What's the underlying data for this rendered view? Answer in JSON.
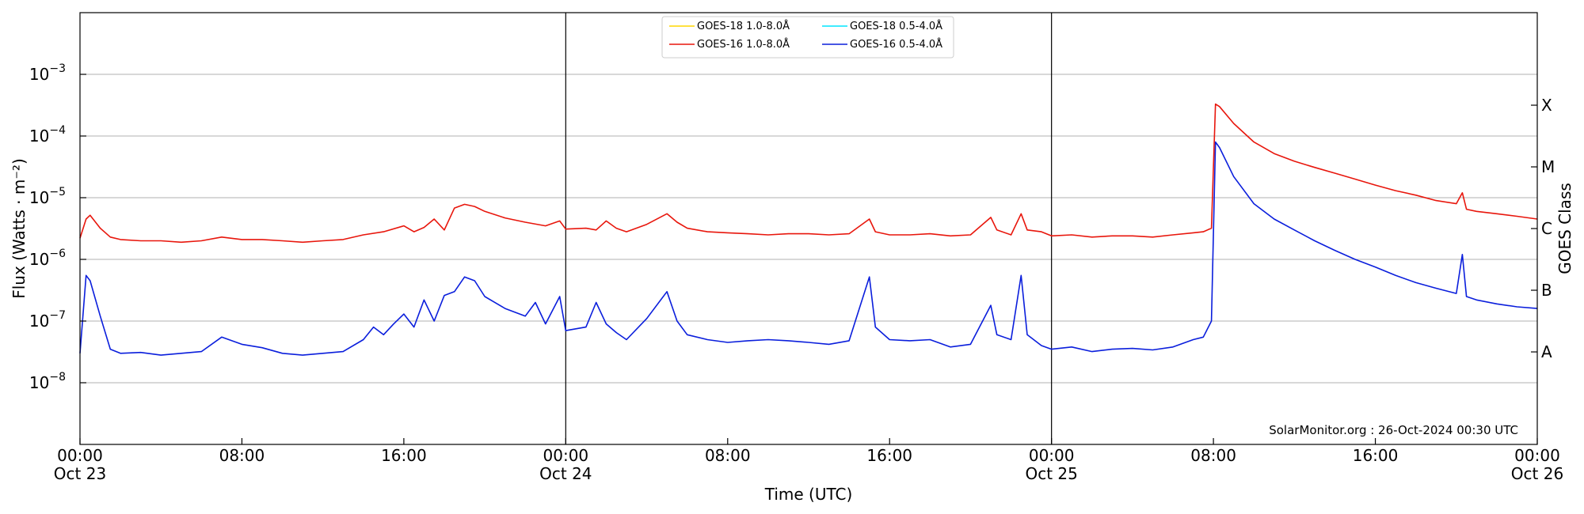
{
  "chart_data": {
    "type": "line",
    "title": "",
    "xlabel": "Time (UTC)",
    "ylabel": "Flux (Watts · m⁻²)",
    "right_ylabel": "GOES Class",
    "yscale": "log",
    "xlim_hours": [
      0,
      72
    ],
    "ylim": [
      1e-09,
      0.01
    ],
    "grid": "horizontal at y ticks",
    "legend_position": "top-center",
    "annotation": "SolarMonitor.org : 26-Oct-2024 00:30 UTC",
    "x_ticks": [
      {
        "hour": 0,
        "line1": "00:00",
        "line2": "Oct 23"
      },
      {
        "hour": 8,
        "line1": "08:00",
        "line2": ""
      },
      {
        "hour": 16,
        "line1": "16:00",
        "line2": ""
      },
      {
        "hour": 24,
        "line1": "00:00",
        "line2": "Oct 24"
      },
      {
        "hour": 32,
        "line1": "08:00",
        "line2": ""
      },
      {
        "hour": 40,
        "line1": "16:00",
        "line2": ""
      },
      {
        "hour": 48,
        "line1": "00:00",
        "line2": "Oct 25"
      },
      {
        "hour": 56,
        "line1": "08:00",
        "line2": ""
      },
      {
        "hour": 64,
        "line1": "16:00",
        "line2": ""
      },
      {
        "hour": 72,
        "line1": "00:00",
        "line2": "Oct 26"
      }
    ],
    "day_separators_hours": [
      24,
      48
    ],
    "y_ticks": [
      {
        "value": 1e-08,
        "mantissa": "10",
        "exp": "−8"
      },
      {
        "value": 1e-07,
        "mantissa": "10",
        "exp": "−7"
      },
      {
        "value": 1e-06,
        "mantissa": "10",
        "exp": "−6"
      },
      {
        "value": 1e-05,
        "mantissa": "10",
        "exp": "−5"
      },
      {
        "value": 0.0001,
        "mantissa": "10",
        "exp": "−4"
      },
      {
        "value": 0.001,
        "mantissa": "10",
        "exp": "−3"
      }
    ],
    "goes_classes": [
      {
        "label": "A",
        "value": 3.16e-08
      },
      {
        "label": "B",
        "value": 3.16e-07
      },
      {
        "label": "C",
        "value": 3.16e-06
      },
      {
        "label": "M",
        "value": 3.16e-05
      },
      {
        "label": "X",
        "value": 0.000316
      }
    ],
    "series": [
      {
        "name": "GOES-18 1.0-8.0Å",
        "color": "#ffd700",
        "points": []
      },
      {
        "name": "GOES-16 1.0-8.0Å",
        "color": "#e8160c",
        "points": [
          [
            0,
            2.2e-06
          ],
          [
            0.3,
            4.5e-06
          ],
          [
            0.5,
            5.2e-06
          ],
          [
            1,
            3.2e-06
          ],
          [
            1.5,
            2.3e-06
          ],
          [
            2,
            2.1e-06
          ],
          [
            3,
            2e-06
          ],
          [
            4,
            2e-06
          ],
          [
            5,
            1.9e-06
          ],
          [
            6,
            2e-06
          ],
          [
            7,
            2.3e-06
          ],
          [
            8,
            2.1e-06
          ],
          [
            9,
            2.1e-06
          ],
          [
            10,
            2e-06
          ],
          [
            11,
            1.9e-06
          ],
          [
            12,
            2e-06
          ],
          [
            13,
            2.1e-06
          ],
          [
            14,
            2.5e-06
          ],
          [
            15,
            2.8e-06
          ],
          [
            16,
            3.5e-06
          ],
          [
            16.5,
            2.8e-06
          ],
          [
            17,
            3.3e-06
          ],
          [
            17.5,
            4.5e-06
          ],
          [
            18,
            3e-06
          ],
          [
            18.5,
            6.8e-06
          ],
          [
            19,
            7.8e-06
          ],
          [
            19.5,
            7.2e-06
          ],
          [
            20,
            6e-06
          ],
          [
            21,
            4.7e-06
          ],
          [
            22,
            4e-06
          ],
          [
            23,
            3.5e-06
          ],
          [
            23.7,
            4.2e-06
          ],
          [
            24,
            3.1e-06
          ],
          [
            25,
            3.2e-06
          ],
          [
            25.5,
            3e-06
          ],
          [
            26,
            4.2e-06
          ],
          [
            26.5,
            3.2e-06
          ],
          [
            27,
            2.8e-06
          ],
          [
            28,
            3.7e-06
          ],
          [
            29,
            5.5e-06
          ],
          [
            29.5,
            4e-06
          ],
          [
            30,
            3.2e-06
          ],
          [
            31,
            2.8e-06
          ],
          [
            32,
            2.7e-06
          ],
          [
            33,
            2.6e-06
          ],
          [
            34,
            2.5e-06
          ],
          [
            35,
            2.6e-06
          ],
          [
            36,
            2.6e-06
          ],
          [
            37,
            2.5e-06
          ],
          [
            38,
            2.6e-06
          ],
          [
            39,
            4.5e-06
          ],
          [
            39.3,
            2.8e-06
          ],
          [
            40,
            2.5e-06
          ],
          [
            41,
            2.5e-06
          ],
          [
            42,
            2.6e-06
          ],
          [
            43,
            2.4e-06
          ],
          [
            44,
            2.5e-06
          ],
          [
            45,
            4.8e-06
          ],
          [
            45.3,
            3e-06
          ],
          [
            46,
            2.5e-06
          ],
          [
            46.5,
            5.5e-06
          ],
          [
            46.8,
            3e-06
          ],
          [
            47.5,
            2.8e-06
          ],
          [
            48,
            2.4e-06
          ],
          [
            49,
            2.5e-06
          ],
          [
            50,
            2.3e-06
          ],
          [
            51,
            2.4e-06
          ],
          [
            52,
            2.4e-06
          ],
          [
            53,
            2.3e-06
          ],
          [
            54,
            2.5e-06
          ],
          [
            55,
            2.7e-06
          ],
          [
            55.5,
            2.8e-06
          ],
          [
            55.9,
            3.2e-06
          ],
          [
            56.1,
            0.00033
          ],
          [
            56.3,
            0.0003
          ],
          [
            57,
            0.00016
          ],
          [
            58,
            8e-05
          ],
          [
            59,
            5.2e-05
          ],
          [
            60,
            3.9e-05
          ],
          [
            61,
            3.1e-05
          ],
          [
            62,
            2.5e-05
          ],
          [
            63,
            2e-05
          ],
          [
            64,
            1.6e-05
          ],
          [
            65,
            1.3e-05
          ],
          [
            66,
            1.1e-05
          ],
          [
            67,
            9e-06
          ],
          [
            68,
            8e-06
          ],
          [
            68.3,
            1.2e-05
          ],
          [
            68.5,
            6.5e-06
          ],
          [
            69,
            6e-06
          ],
          [
            70,
            5.5e-06
          ],
          [
            71,
            5e-06
          ],
          [
            72,
            4.5e-06
          ]
        ]
      },
      {
        "name": "GOES-18 0.5-4.0Å",
        "color": "#00e5ff",
        "points": []
      },
      {
        "name": "GOES-16 0.5-4.0Å",
        "color": "#0a1edc",
        "points": [
          [
            0,
            3e-08
          ],
          [
            0.3,
            5.5e-07
          ],
          [
            0.5,
            4.5e-07
          ],
          [
            1,
            1.2e-07
          ],
          [
            1.5,
            3.5e-08
          ],
          [
            2,
            3e-08
          ],
          [
            3,
            3.1e-08
          ],
          [
            4,
            2.8e-08
          ],
          [
            5,
            3e-08
          ],
          [
            6,
            3.2e-08
          ],
          [
            7,
            5.5e-08
          ],
          [
            8,
            4.2e-08
          ],
          [
            9,
            3.7e-08
          ],
          [
            10,
            3e-08
          ],
          [
            11,
            2.8e-08
          ],
          [
            12,
            3e-08
          ],
          [
            13,
            3.2e-08
          ],
          [
            14,
            5e-08
          ],
          [
            14.5,
            8e-08
          ],
          [
            15,
            6e-08
          ],
          [
            15.5,
            9e-08
          ],
          [
            16,
            1.3e-07
          ],
          [
            16.5,
            8e-08
          ],
          [
            17,
            2.2e-07
          ],
          [
            17.5,
            1e-07
          ],
          [
            18,
            2.6e-07
          ],
          [
            18.5,
            3e-07
          ],
          [
            19,
            5.2e-07
          ],
          [
            19.5,
            4.5e-07
          ],
          [
            20,
            2.5e-07
          ],
          [
            21,
            1.6e-07
          ],
          [
            22,
            1.2e-07
          ],
          [
            22.5,
            2e-07
          ],
          [
            23,
            9e-08
          ],
          [
            23.7,
            2.5e-07
          ],
          [
            24,
            7e-08
          ],
          [
            25,
            8e-08
          ],
          [
            25.5,
            2e-07
          ],
          [
            26,
            9e-08
          ],
          [
            26.5,
            6.5e-08
          ],
          [
            27,
            5e-08
          ],
          [
            28,
            1.1e-07
          ],
          [
            29,
            3e-07
          ],
          [
            29.5,
            1e-07
          ],
          [
            30,
            6e-08
          ],
          [
            31,
            5e-08
          ],
          [
            32,
            4.5e-08
          ],
          [
            33,
            4.8e-08
          ],
          [
            34,
            5e-08
          ],
          [
            35,
            4.8e-08
          ],
          [
            36,
            4.5e-08
          ],
          [
            37,
            4.2e-08
          ],
          [
            38,
            4.8e-08
          ],
          [
            39,
            5.2e-07
          ],
          [
            39.3,
            8e-08
          ],
          [
            40,
            5e-08
          ],
          [
            41,
            4.8e-08
          ],
          [
            42,
            5e-08
          ],
          [
            43,
            3.8e-08
          ],
          [
            44,
            4.2e-08
          ],
          [
            45,
            1.8e-07
          ],
          [
            45.3,
            6e-08
          ],
          [
            46,
            5e-08
          ],
          [
            46.5,
            5.5e-07
          ],
          [
            46.8,
            6e-08
          ],
          [
            47.5,
            4e-08
          ],
          [
            48,
            3.5e-08
          ],
          [
            49,
            3.8e-08
          ],
          [
            50,
            3.2e-08
          ],
          [
            51,
            3.5e-08
          ],
          [
            52,
            3.6e-08
          ],
          [
            53,
            3.4e-08
          ],
          [
            54,
            3.8e-08
          ],
          [
            55,
            5e-08
          ],
          [
            55.5,
            5.5e-08
          ],
          [
            55.9,
            1e-07
          ],
          [
            56.1,
            8e-05
          ],
          [
            56.3,
            6.5e-05
          ],
          [
            57,
            2.2e-05
          ],
          [
            58,
            8e-06
          ],
          [
            59,
            4.5e-06
          ],
          [
            60,
            3e-06
          ],
          [
            61,
            2e-06
          ],
          [
            62,
            1.4e-06
          ],
          [
            63,
            1e-06
          ],
          [
            64,
            7.5e-07
          ],
          [
            65,
            5.5e-07
          ],
          [
            66,
            4.2e-07
          ],
          [
            67,
            3.4e-07
          ],
          [
            68,
            2.8e-07
          ],
          [
            68.3,
            1.2e-06
          ],
          [
            68.5,
            2.5e-07
          ],
          [
            69,
            2.2e-07
          ],
          [
            70,
            1.9e-07
          ],
          [
            71,
            1.7e-07
          ],
          [
            72,
            1.6e-07
          ]
        ]
      }
    ]
  }
}
